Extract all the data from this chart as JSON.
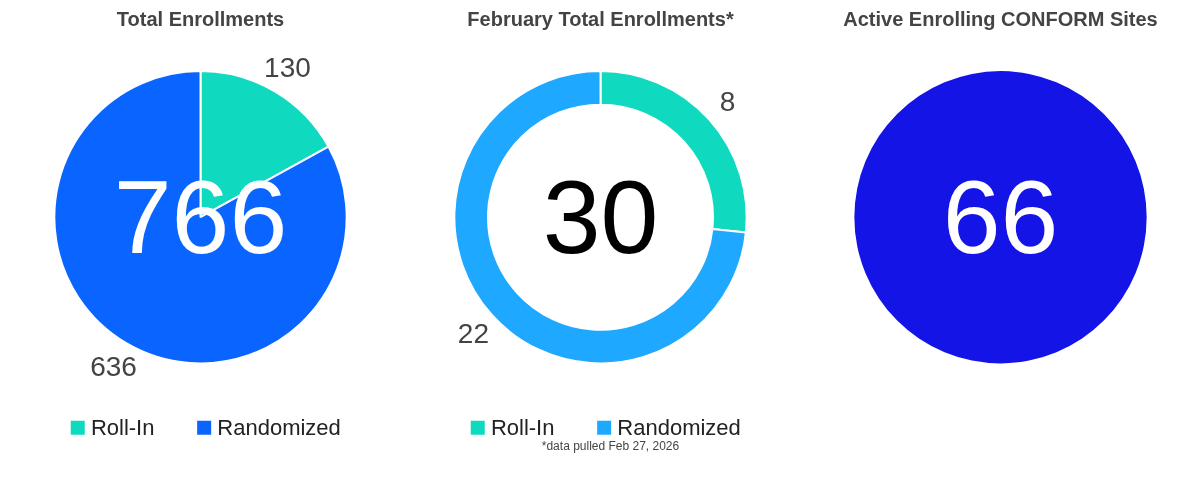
{
  "chart_data": [
    {
      "type": "pie",
      "title": "Total Enrollments",
      "categories": [
        "Roll-In",
        "Randomized"
      ],
      "values": [
        130,
        636
      ],
      "colors": [
        "#0fd9be",
        "#0a64ff"
      ],
      "data_labels": true,
      "legend": "bottom",
      "annotations": [
        "766"
      ]
    },
    {
      "type": "donut",
      "title": "February Total Enrollments*",
      "categories": [
        "Roll-In",
        "Randomized"
      ],
      "values": [
        8,
        22
      ],
      "colors": [
        "#0fd9be",
        "#1fa8ff"
      ],
      "data_labels": true,
      "legend": "bottom",
      "annotations": [
        "30",
        "*data pulled Feb 27, 2026"
      ]
    },
    {
      "type": "pie",
      "title": "Active Enrolling CONFORM Sites",
      "categories": [
        null
      ],
      "values": [
        100
      ],
      "colors": [
        "#1414e6"
      ],
      "annotations": [
        "66"
      ]
    }
  ]
}
